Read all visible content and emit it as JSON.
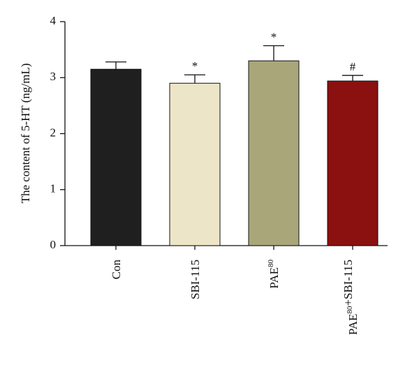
{
  "chart_data": {
    "type": "bar",
    "y_label": "The content of 5-HT (ng/mL)",
    "categories": [
      "Con",
      "SBI-115",
      "PAE80",
      "PAE80+SBI-115"
    ],
    "values": [
      3.15,
      2.9,
      3.3,
      2.94
    ],
    "errors": [
      0.13,
      0.15,
      0.27,
      0.1
    ],
    "colors": [
      "#1f1f1f",
      "#ede5c8",
      "#a9a67a",
      "#8b1010"
    ],
    "annotations": [
      null,
      "*",
      "*",
      "#"
    ],
    "ylim": [
      0,
      4
    ],
    "yticks": [
      0,
      1,
      2,
      3,
      4
    ]
  }
}
